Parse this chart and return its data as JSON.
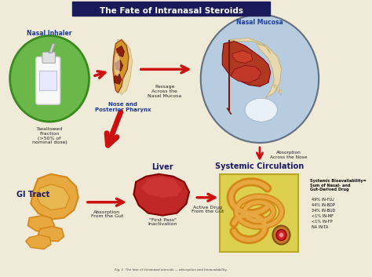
{
  "title": "The Fate of Intranasal Steroids",
  "title_bg": "#1a1a5a",
  "title_color": "#ffffff",
  "bg_color": "#f0ead8",
  "labels": {
    "nasal_inhaler": "Nasal Inhaler",
    "nasal_mucosa": "Nasal Mucosa",
    "nose_pharynx": "Nose and\nPosterior Pharynx",
    "swallowed": "Swallowed\nFraction\n(>50% of\nnominal dose)",
    "passage": "Passage\nAcross the\nNasal Mucosa",
    "absorption_nose": "Absorption\nAcross the Nose",
    "gi_tract": "GI Tract",
    "absorption_gut": "Absorption\nFrom the Gut",
    "liver": "Liver",
    "first_pass": "\"First Pass\"\nInactivation",
    "active_drug": "Active Drug\nFrom the Gut",
    "systemic": "Systemic Circulation",
    "bioavail_title": "Systemic Bioavailability=\nSum of Nasal- and\nGut-Derived Drug",
    "bioavail_values": "49% IN-FLU\n44% IN-BDP\n34% IN-BUD\n<1% IN-MF\n<1% IN-FP\nNA IN-TA"
  },
  "colors": {
    "green_circle": "#6ab84a",
    "green_dark": "#3a8a20",
    "label_blue": "#1a3a9a",
    "label_navy": "#1a1a6a",
    "liver_red": "#c02828",
    "liver_light": "#d84040",
    "stomach_orange": "#d4881a",
    "stomach_light": "#e8a840",
    "yellow_box": "#ddd050",
    "yellow_box_dark": "#b8a820",
    "arrow_red": "#cc1111",
    "nose_bg": "#b8cce0",
    "nose_orange": "#c87830",
    "nose_amber": "#d4952a",
    "nose_dark_red": "#8a2010",
    "nose_brown": "#a04820",
    "gut_orange": "#d4881a",
    "gut_tube": "#c87828"
  }
}
